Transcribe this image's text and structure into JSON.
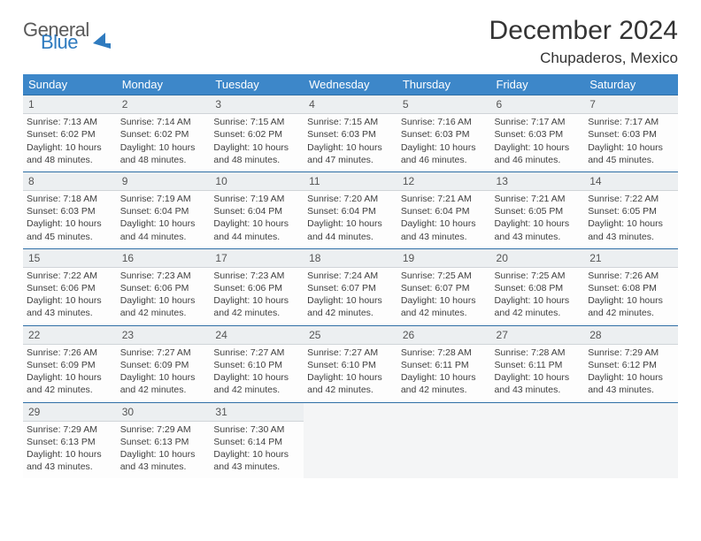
{
  "brand": {
    "word1": "General",
    "word2": "Blue"
  },
  "title": "December 2024",
  "location": "Chupaderos, Mexico",
  "colors": {
    "header_bg": "#3d87c9",
    "header_rule": "#2f6fa6",
    "daynum_bg": "#eceff1",
    "text": "#404040",
    "brand_blue": "#2f7bbf"
  },
  "day_headers": [
    "Sunday",
    "Monday",
    "Tuesday",
    "Wednesday",
    "Thursday",
    "Friday",
    "Saturday"
  ],
  "weeks": [
    [
      {
        "n": "1",
        "sr": "Sunrise: 7:13 AM",
        "ss": "Sunset: 6:02 PM",
        "dl": "Daylight: 10 hours and 48 minutes."
      },
      {
        "n": "2",
        "sr": "Sunrise: 7:14 AM",
        "ss": "Sunset: 6:02 PM",
        "dl": "Daylight: 10 hours and 48 minutes."
      },
      {
        "n": "3",
        "sr": "Sunrise: 7:15 AM",
        "ss": "Sunset: 6:02 PM",
        "dl": "Daylight: 10 hours and 48 minutes."
      },
      {
        "n": "4",
        "sr": "Sunrise: 7:15 AM",
        "ss": "Sunset: 6:03 PM",
        "dl": "Daylight: 10 hours and 47 minutes."
      },
      {
        "n": "5",
        "sr": "Sunrise: 7:16 AM",
        "ss": "Sunset: 6:03 PM",
        "dl": "Daylight: 10 hours and 46 minutes."
      },
      {
        "n": "6",
        "sr": "Sunrise: 7:17 AM",
        "ss": "Sunset: 6:03 PM",
        "dl": "Daylight: 10 hours and 46 minutes."
      },
      {
        "n": "7",
        "sr": "Sunrise: 7:17 AM",
        "ss": "Sunset: 6:03 PM",
        "dl": "Daylight: 10 hours and 45 minutes."
      }
    ],
    [
      {
        "n": "8",
        "sr": "Sunrise: 7:18 AM",
        "ss": "Sunset: 6:03 PM",
        "dl": "Daylight: 10 hours and 45 minutes."
      },
      {
        "n": "9",
        "sr": "Sunrise: 7:19 AM",
        "ss": "Sunset: 6:04 PM",
        "dl": "Daylight: 10 hours and 44 minutes."
      },
      {
        "n": "10",
        "sr": "Sunrise: 7:19 AM",
        "ss": "Sunset: 6:04 PM",
        "dl": "Daylight: 10 hours and 44 minutes."
      },
      {
        "n": "11",
        "sr": "Sunrise: 7:20 AM",
        "ss": "Sunset: 6:04 PM",
        "dl": "Daylight: 10 hours and 44 minutes."
      },
      {
        "n": "12",
        "sr": "Sunrise: 7:21 AM",
        "ss": "Sunset: 6:04 PM",
        "dl": "Daylight: 10 hours and 43 minutes."
      },
      {
        "n": "13",
        "sr": "Sunrise: 7:21 AM",
        "ss": "Sunset: 6:05 PM",
        "dl": "Daylight: 10 hours and 43 minutes."
      },
      {
        "n": "14",
        "sr": "Sunrise: 7:22 AM",
        "ss": "Sunset: 6:05 PM",
        "dl": "Daylight: 10 hours and 43 minutes."
      }
    ],
    [
      {
        "n": "15",
        "sr": "Sunrise: 7:22 AM",
        "ss": "Sunset: 6:06 PM",
        "dl": "Daylight: 10 hours and 43 minutes."
      },
      {
        "n": "16",
        "sr": "Sunrise: 7:23 AM",
        "ss": "Sunset: 6:06 PM",
        "dl": "Daylight: 10 hours and 42 minutes."
      },
      {
        "n": "17",
        "sr": "Sunrise: 7:23 AM",
        "ss": "Sunset: 6:06 PM",
        "dl": "Daylight: 10 hours and 42 minutes."
      },
      {
        "n": "18",
        "sr": "Sunrise: 7:24 AM",
        "ss": "Sunset: 6:07 PM",
        "dl": "Daylight: 10 hours and 42 minutes."
      },
      {
        "n": "19",
        "sr": "Sunrise: 7:25 AM",
        "ss": "Sunset: 6:07 PM",
        "dl": "Daylight: 10 hours and 42 minutes."
      },
      {
        "n": "20",
        "sr": "Sunrise: 7:25 AM",
        "ss": "Sunset: 6:08 PM",
        "dl": "Daylight: 10 hours and 42 minutes."
      },
      {
        "n": "21",
        "sr": "Sunrise: 7:26 AM",
        "ss": "Sunset: 6:08 PM",
        "dl": "Daylight: 10 hours and 42 minutes."
      }
    ],
    [
      {
        "n": "22",
        "sr": "Sunrise: 7:26 AM",
        "ss": "Sunset: 6:09 PM",
        "dl": "Daylight: 10 hours and 42 minutes."
      },
      {
        "n": "23",
        "sr": "Sunrise: 7:27 AM",
        "ss": "Sunset: 6:09 PM",
        "dl": "Daylight: 10 hours and 42 minutes."
      },
      {
        "n": "24",
        "sr": "Sunrise: 7:27 AM",
        "ss": "Sunset: 6:10 PM",
        "dl": "Daylight: 10 hours and 42 minutes."
      },
      {
        "n": "25",
        "sr": "Sunrise: 7:27 AM",
        "ss": "Sunset: 6:10 PM",
        "dl": "Daylight: 10 hours and 42 minutes."
      },
      {
        "n": "26",
        "sr": "Sunrise: 7:28 AM",
        "ss": "Sunset: 6:11 PM",
        "dl": "Daylight: 10 hours and 42 minutes."
      },
      {
        "n": "27",
        "sr": "Sunrise: 7:28 AM",
        "ss": "Sunset: 6:11 PM",
        "dl": "Daylight: 10 hours and 43 minutes."
      },
      {
        "n": "28",
        "sr": "Sunrise: 7:29 AM",
        "ss": "Sunset: 6:12 PM",
        "dl": "Daylight: 10 hours and 43 minutes."
      }
    ],
    [
      {
        "n": "29",
        "sr": "Sunrise: 7:29 AM",
        "ss": "Sunset: 6:13 PM",
        "dl": "Daylight: 10 hours and 43 minutes."
      },
      {
        "n": "30",
        "sr": "Sunrise: 7:29 AM",
        "ss": "Sunset: 6:13 PM",
        "dl": "Daylight: 10 hours and 43 minutes."
      },
      {
        "n": "31",
        "sr": "Sunrise: 7:30 AM",
        "ss": "Sunset: 6:14 PM",
        "dl": "Daylight: 10 hours and 43 minutes."
      },
      null,
      null,
      null,
      null
    ]
  ]
}
